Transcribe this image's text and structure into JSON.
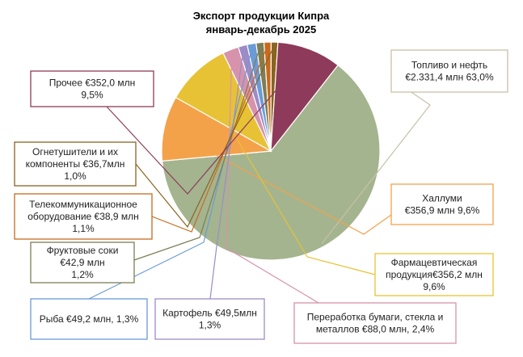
{
  "chart_data": {
    "type": "pie",
    "title": "Экспорт продукции Кипра",
    "subtitle": "январь-декабрь 2025",
    "slices": [
      {
        "label": "Топливо и нефть",
        "value": 2331.4,
        "value_text": "€2.331,4 млн",
        "percent_text": "63,0%",
        "color": "#a4b48f",
        "label_lines": [
          "Топливо и нефть",
          "€2.331,4 млн  63,0%"
        ]
      },
      {
        "label": "Халлуми",
        "value": 356.9,
        "value_text": "€356,9 млн",
        "percent_text": "9,6%",
        "color": "#f4a24a",
        "label_lines": [
          "Халлуми",
          "€356,9 млн  9,6%"
        ]
      },
      {
        "label": "Фармацевтическая продукция",
        "value": 356.2,
        "value_text": "€356,2 млн",
        "percent_text": "9,6%",
        "color": "#e7c235",
        "label_lines": [
          "Фармацевтическая",
          "продукция€356,2 млн",
          "9,6%"
        ]
      },
      {
        "label": "Переработка бумаги, стекла и металлов",
        "value": 88.0,
        "value_text": "€88,0 млн",
        "percent_text": "2,4%",
        "color": "#d693ab",
        "label_lines": [
          "Переработка бумаги, стекла и",
          "металлов €88,0 млн, 2,4%"
        ]
      },
      {
        "label": "Картофель",
        "value": 49.5,
        "value_text": "€49,5млн",
        "percent_text": "1,3%",
        "color": "#9d8bc8",
        "label_lines": [
          "Картофель €49,5млн",
          "1,3%"
        ]
      },
      {
        "label": "Рыба",
        "value": 49.2,
        "value_text": "€49,2 млн",
        "percent_text": "1,3%",
        "color": "#6a9bd6",
        "label_lines": [
          "Рыба €49,2 млн, 1,3%"
        ]
      },
      {
        "label": "Фруктовые соки",
        "value": 42.9,
        "value_text": "€42,9 млн",
        "percent_text": "1,2%",
        "color": "#7c7e55",
        "label_lines": [
          "Фруктовые соки",
          "€42,9 млн",
          "1,2%"
        ]
      },
      {
        "label": "Телекоммуникационное оборудование",
        "value": 38.9,
        "value_text": "€38,9 млн",
        "percent_text": "1,1%",
        "color": "#c86a1d",
        "label_lines": [
          "Телекоммуникационное",
          "оборудование  €38,9 млн",
          "1,1%"
        ]
      },
      {
        "label": "Огнетушители и их компоненты",
        "value": 36.7,
        "value_text": "€36,7млн",
        "percent_text": "1,0%",
        "color": "#8a6421",
        "label_lines": [
          "Огнетушители и их",
          "компоненты  €36,7млн",
          "1,0%"
        ]
      },
      {
        "label": "Прочее",
        "value": 352.0,
        "value_text": "€352,0 млн",
        "percent_text": "9,5%",
        "color": "#8e3a5a",
        "label_lines": [
          "Прочее  €352,0 млн",
          "9,5%"
        ]
      }
    ],
    "start_angle_deg": -52,
    "direction": "clockwise",
    "legend": "none"
  }
}
